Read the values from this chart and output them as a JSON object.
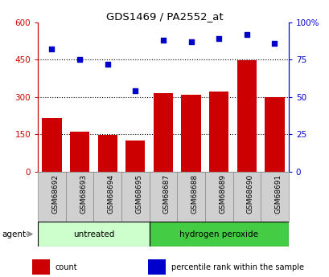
{
  "title": "GDS1469 / PA2552_at",
  "categories": [
    "GSM68692",
    "GSM68693",
    "GSM68694",
    "GSM68695",
    "GSM68687",
    "GSM68688",
    "GSM68689",
    "GSM68690",
    "GSM68691"
  ],
  "bar_values": [
    215,
    160,
    148,
    125,
    315,
    308,
    323,
    447,
    298
  ],
  "scatter_values": [
    82,
    75,
    72,
    54,
    88,
    87,
    89,
    92,
    86
  ],
  "bar_color": "#cc0000",
  "scatter_color": "#0000cc",
  "left_yaxis": {
    "min": 0,
    "max": 600,
    "ticks": [
      0,
      150,
      300,
      450,
      600
    ],
    "tick_labels": [
      "0",
      "150",
      "300",
      "450",
      "600"
    ],
    "color": "#cc0000"
  },
  "right_yaxis": {
    "min": 0,
    "max": 100,
    "ticks": [
      0,
      25,
      50,
      75,
      100
    ],
    "tick_labels": [
      "0",
      "25",
      "50",
      "75",
      "100%"
    ],
    "color": "#0000cc"
  },
  "groups": [
    {
      "label": "untreated",
      "n_cols": 4,
      "color": "#ccffcc",
      "border_color": "#000000"
    },
    {
      "label": "hydrogen peroxide",
      "n_cols": 5,
      "color": "#44cc44",
      "border_color": "#000000"
    }
  ],
  "agent_label": "agent",
  "legend_items": [
    {
      "label": "count",
      "color": "#cc0000"
    },
    {
      "label": "percentile rank within the sample",
      "color": "#0000cc"
    }
  ],
  "grid_dotted_at": [
    150,
    300,
    450
  ],
  "xticklabel_bg": "#d0d0d0",
  "plot_bg": "#ffffff"
}
